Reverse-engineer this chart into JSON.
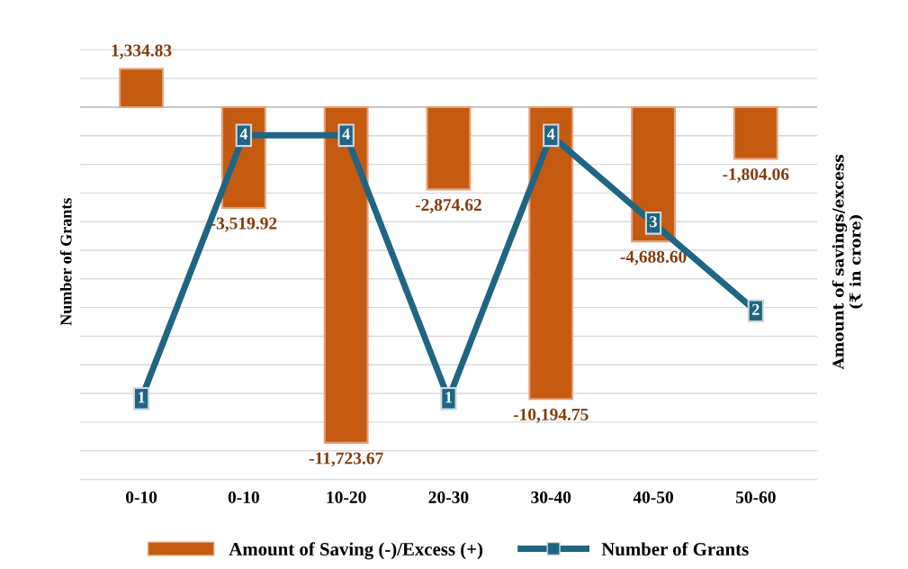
{
  "chart_data": {
    "type": "bar",
    "categories": [
      "0-10",
      "0-10",
      "10-20",
      "20-30",
      "30-40",
      "40-50",
      "50-60"
    ],
    "ylabel": "Amount of savings/excess\n(₹ in crore)",
    "y2label": "Number of Grants",
    "series": [
      {
        "name": "Amount of Saving (-)/Excess (+)",
        "color": "#c55a11",
        "values": [
          1334.83,
          -3519.92,
          -11723.67,
          -2874.62,
          -10194.75,
          -4688.6,
          -1804.06
        ],
        "value_labels": [
          "1,334.83",
          "-3,519.92",
          "-11,723.67",
          "-2,874.62",
          "-10,194.75",
          "-4,688.60",
          "-1,804.06"
        ]
      },
      {
        "name": "Number of Grants",
        "type": "line",
        "axis": "y2",
        "color": "#1f6584",
        "values": [
          1,
          4,
          4,
          1,
          4,
          3,
          2
        ]
      }
    ],
    "data_labels": true,
    "grid": "y",
    "legend": "bottom",
    "tick_labels": "x",
    "marker": "square"
  }
}
